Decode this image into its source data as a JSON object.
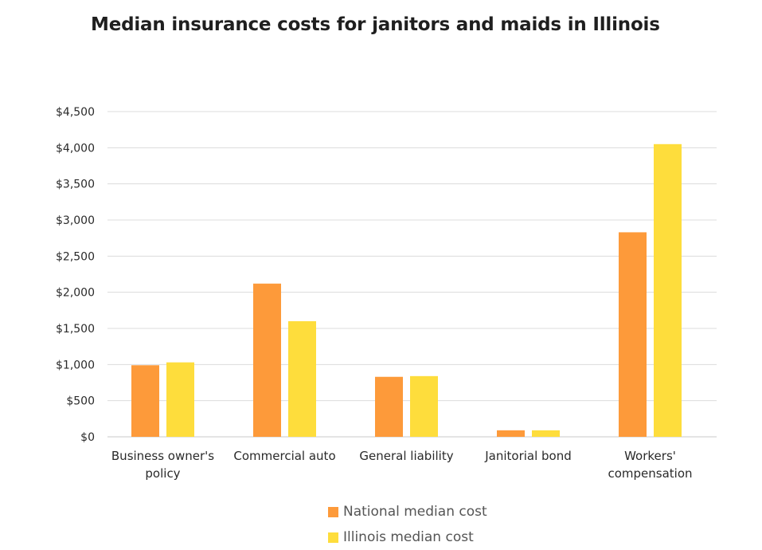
{
  "chart_data": {
    "type": "bar",
    "title": "Median insurance costs for janitors and maids in Illinois",
    "xlabel": "",
    "ylabel": "",
    "categories": [
      [
        "Business owner's",
        "policy"
      ],
      [
        "Commercial auto"
      ],
      [
        "General liability"
      ],
      [
        "Janitorial bond"
      ],
      [
        "Workers'",
        "compensation"
      ]
    ],
    "series": [
      {
        "name": "National median cost",
        "color": "#FD9A3A",
        "values": [
          990,
          2120,
          830,
          90,
          2830
        ]
      },
      {
        "name": "Illinois median cost",
        "color": "#FEDD3C",
        "values": [
          1030,
          1600,
          840,
          90,
          4050
        ]
      }
    ],
    "ylim": [
      0,
      4500
    ],
    "yticks": [
      0,
      500,
      1000,
      1500,
      2000,
      2500,
      3000,
      3500,
      4000,
      4500
    ],
    "ytick_labels": [
      "$0",
      "$500",
      "$1,000",
      "$1,500",
      "$2,000",
      "$2,500",
      "$3,000",
      "$3,500",
      "$4,000",
      "$4,500"
    ],
    "grid": true,
    "legend_position": "bottom-center"
  }
}
